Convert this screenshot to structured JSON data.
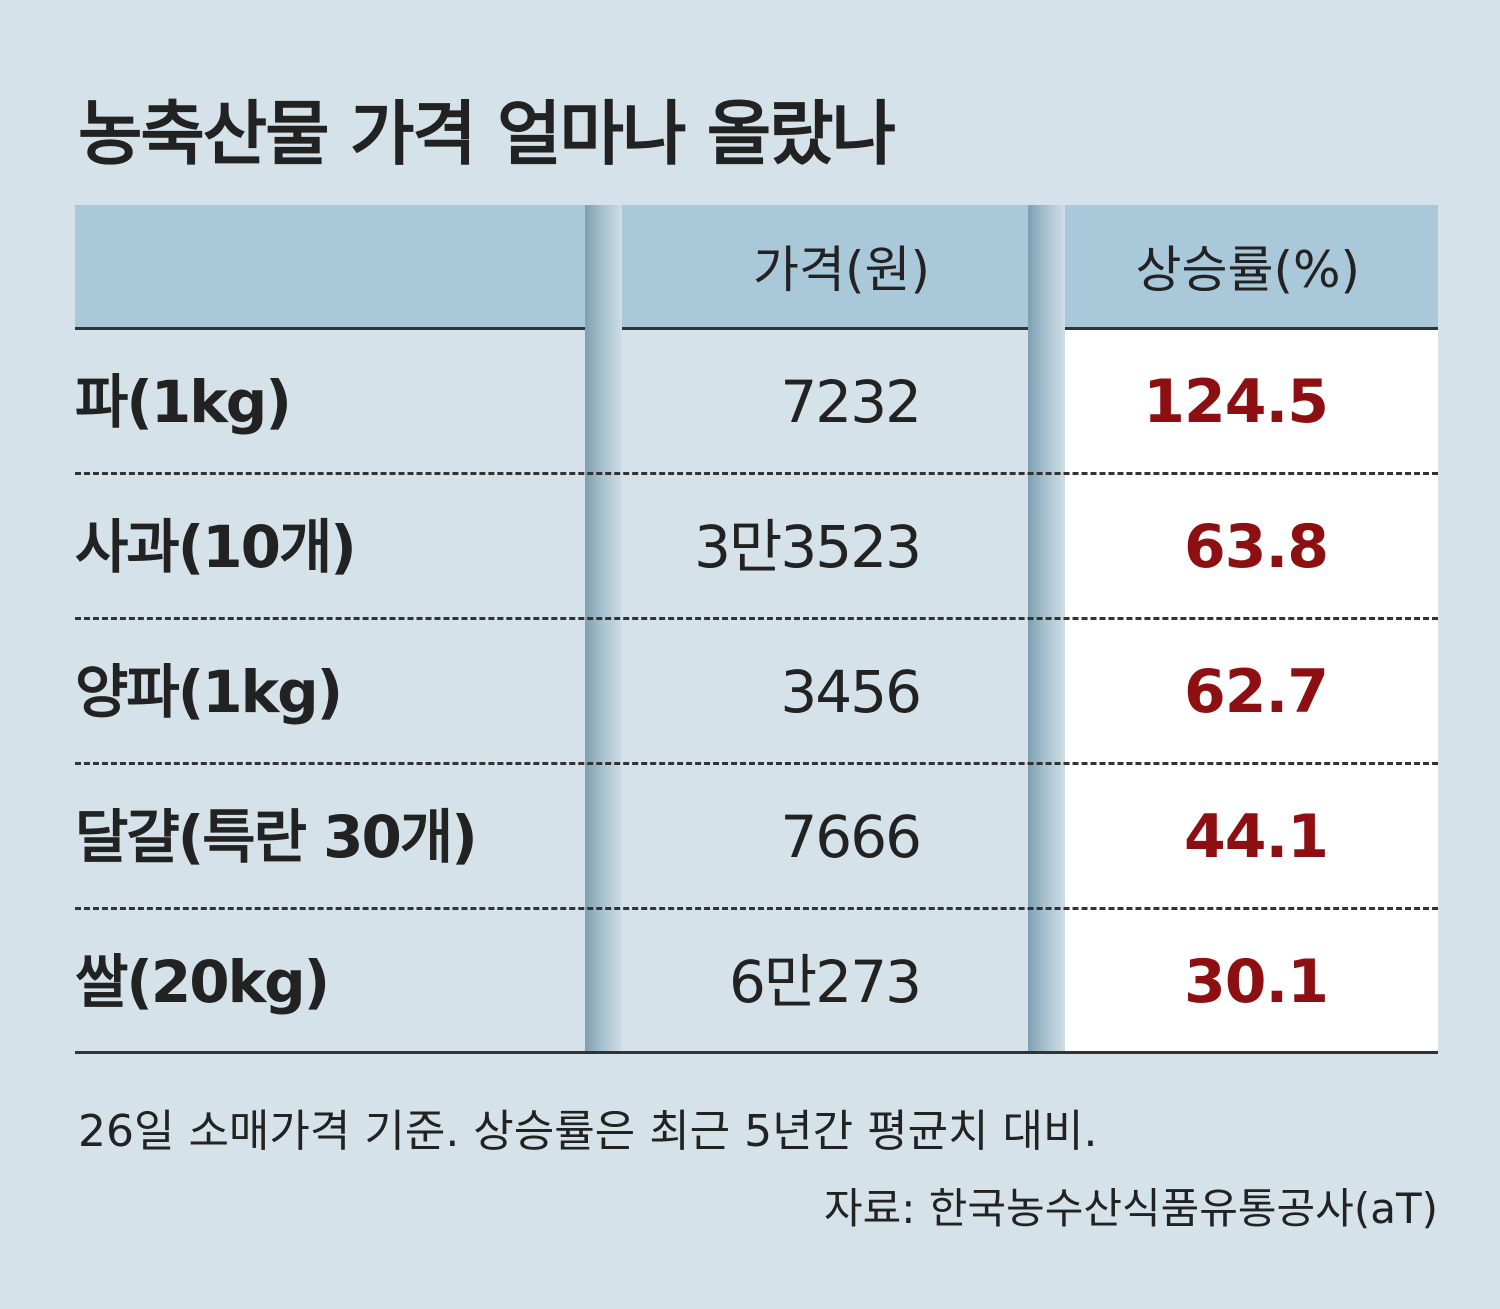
{
  "header": {
    "title": "농축산물 가격 얼마나 올랐나"
  },
  "table": {
    "columns": [
      "",
      "가격(원)",
      "상승률(%)"
    ],
    "rows": [
      [
        "파(1kg)",
        "7232",
        "124.5"
      ],
      [
        "사과(10개)",
        "3만3523",
        "63.8"
      ],
      [
        "양파(1kg)",
        "3456",
        "62.7"
      ],
      [
        "달걀(특란 30개)",
        "7666",
        "44.1"
      ],
      [
        "쌀(20kg)",
        "6만273",
        "30.1"
      ]
    ]
  },
  "footer": {
    "note": "26일 소매가격 기준. 상승률은 최근 5년간 평균치 대비.",
    "source": "자료: 한국농수산식품유통공사(aT)"
  }
}
